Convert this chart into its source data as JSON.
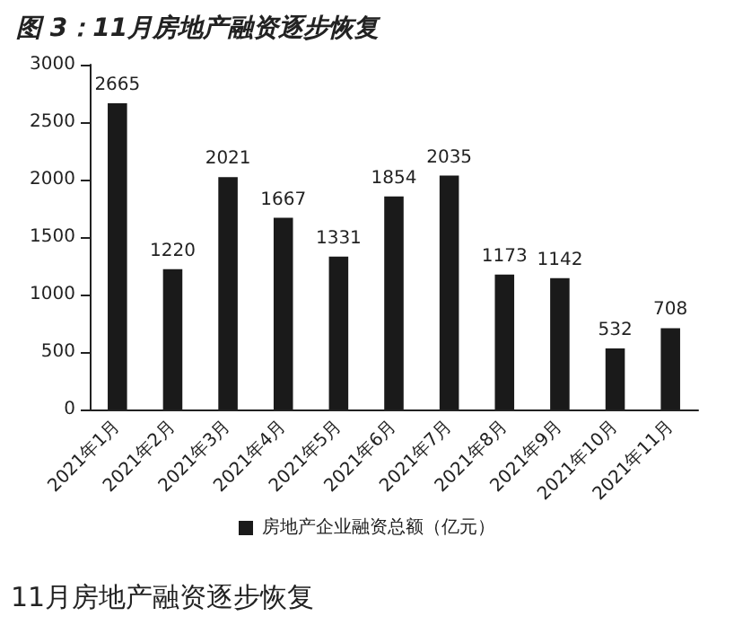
{
  "chart_data": {
    "type": "bar",
    "title": "图 3：11月房地产融资逐步恢复",
    "categories": [
      "2021年1月",
      "2021年2月",
      "2021年3月",
      "2021年4月",
      "2021年5月",
      "2021年6月",
      "2021年7月",
      "2021年8月",
      "2021年9月",
      "2021年10月",
      "2021年11月"
    ],
    "series": [
      {
        "name": "房地产企业融资总额（亿元）",
        "color": "#1a1a1a",
        "values": [
          2665,
          1220,
          2021,
          1667,
          1331,
          1854,
          2035,
          1173,
          1142,
          532,
          708
        ]
      }
    ],
    "ylim": [
      0,
      3000
    ],
    "yticks": [
      0,
      500,
      1000,
      1500,
      2000,
      2500,
      3000
    ],
    "data_labels": true,
    "grid": false,
    "legend": "bottom",
    "annotations": [
      "11月房地产融资逐步恢复"
    ]
  }
}
